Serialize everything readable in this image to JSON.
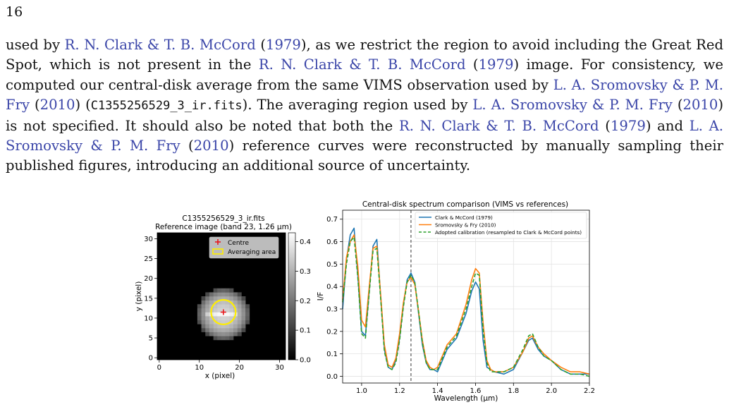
{
  "page_number": "16",
  "paragraph": [
    {
      "t": "used by "
    },
    {
      "t": "R. N. Clark & T. B. McCord",
      "link": true
    },
    {
      "t": " ("
    },
    {
      "t": "1979",
      "link": true
    },
    {
      "t": "), as we restrict the region to avoid including the Great Red Spot, which is not present in the "
    },
    {
      "t": "R. N. Clark & T. B. McCord",
      "link": true
    },
    {
      "t": " ("
    },
    {
      "t": "1979",
      "link": true
    },
    {
      "t": ") image. For consistency, we computed our central-disk average from the same VIMS observation used by "
    },
    {
      "t": "L. A. Sromovsky & P. M. Fry",
      "link": true
    },
    {
      "t": " ("
    },
    {
      "t": "2010",
      "link": true
    },
    {
      "t": ") ("
    },
    {
      "t": "C1355256529_3_ir.fits",
      "code": true
    },
    {
      "t": "). The averaging region used by "
    },
    {
      "t": "L. A. Sromovsky & P. M. Fry",
      "link": true
    },
    {
      "t": " ("
    },
    {
      "t": "2010",
      "link": true
    },
    {
      "t": ") is not specified. It should also be noted that both the "
    },
    {
      "t": "R. N. Clark & T. B. McCord",
      "link": true
    },
    {
      "t": " ("
    },
    {
      "t": "1979",
      "link": true
    },
    {
      "t": ") and "
    },
    {
      "t": "L. A. Sromovsky & P. M. Fry",
      "link": true
    },
    {
      "t": " ("
    },
    {
      "t": "2010",
      "link": true
    },
    {
      "t": ") reference curves were reconstructed by manually sampling their published figures, introducing an additional source of uncertainty."
    }
  ],
  "chart_data": [
    {
      "type": "heatmap",
      "title": "C1355256529_3_ir.fits",
      "subtitle": "Reference image (band 23, 1.26 μm)",
      "xlabel": "x (pixel)",
      "ylabel": "y (pixel)",
      "xlim": [
        -0.5,
        31.5
      ],
      "ylim": [
        -0.5,
        31.5
      ],
      "xticks": [
        0,
        10,
        20,
        30
      ],
      "yticks": [
        0,
        5,
        10,
        15,
        20,
        25,
        30
      ],
      "colorbar": {
        "range": [
          0,
          0.43
        ],
        "ticks": [
          "0.0",
          "0.1",
          "0.2",
          "0.3",
          "0.4"
        ]
      },
      "disk": {
        "center_x": 16,
        "center_y": 11,
        "radius_px": 6.2,
        "peak": 0.36
      },
      "centre": {
        "x": 16,
        "y": 11.5
      },
      "averaging_area": {
        "center_x": 16,
        "center_y": 11.5,
        "radius_px": 1.8
      },
      "legend": [
        "Centre",
        "Averaging area"
      ],
      "legend_position": "top-right",
      "colors": {
        "centre": "#e8161b",
        "averaging_area": "#ffee00"
      }
    },
    {
      "type": "line",
      "title": "Central-disk spectrum comparison (VIMS vs references)",
      "xlabel": "Wavelength (μm)",
      "ylabel": "I/F",
      "xlim": [
        0.9,
        2.2
      ],
      "ylim": [
        -0.03,
        0.74
      ],
      "xticks": [
        "1.0",
        "1.2",
        "1.4",
        "1.6",
        "1.8",
        "2.0",
        "2.2"
      ],
      "yticks": [
        "0.0",
        "0.1",
        "0.2",
        "0.3",
        "0.4",
        "0.5",
        "0.6",
        "0.7"
      ],
      "grid": true,
      "vline": 1.26,
      "legend_position": "top-right",
      "series": [
        {
          "name": "Clark & McCord (1979)",
          "color": "#1f77b4",
          "dash": false,
          "x": [
            0.9,
            0.92,
            0.94,
            0.96,
            0.98,
            1.0,
            1.02,
            1.04,
            1.06,
            1.08,
            1.1,
            1.12,
            1.14,
            1.16,
            1.18,
            1.2,
            1.22,
            1.24,
            1.26,
            1.28,
            1.3,
            1.32,
            1.34,
            1.36,
            1.38,
            1.4,
            1.45,
            1.5,
            1.55,
            1.58,
            1.6,
            1.62,
            1.64,
            1.66,
            1.68,
            1.7,
            1.75,
            1.8,
            1.85,
            1.88,
            1.9,
            1.93,
            1.96,
            2.0,
            2.05,
            2.1,
            2.15,
            2.2
          ],
          "y": [
            0.3,
            0.52,
            0.63,
            0.66,
            0.45,
            0.2,
            0.18,
            0.38,
            0.58,
            0.61,
            0.36,
            0.12,
            0.04,
            0.03,
            0.07,
            0.17,
            0.32,
            0.43,
            0.46,
            0.42,
            0.28,
            0.14,
            0.06,
            0.03,
            0.03,
            0.02,
            0.12,
            0.17,
            0.28,
            0.38,
            0.42,
            0.39,
            0.16,
            0.04,
            0.03,
            0.02,
            0.01,
            0.03,
            0.11,
            0.16,
            0.17,
            0.12,
            0.09,
            0.07,
            0.03,
            0.01,
            0.01,
            0.01
          ]
        },
        {
          "name": "Sromovsky & Fry (2010)",
          "color": "#ff7f0e",
          "dash": false,
          "x": [
            0.9,
            0.92,
            0.94,
            0.96,
            0.98,
            1.0,
            1.02,
            1.04,
            1.06,
            1.08,
            1.1,
            1.12,
            1.14,
            1.16,
            1.18,
            1.2,
            1.22,
            1.24,
            1.26,
            1.28,
            1.3,
            1.32,
            1.34,
            1.36,
            1.38,
            1.4,
            1.45,
            1.5,
            1.55,
            1.58,
            1.6,
            1.62,
            1.64,
            1.66,
            1.68,
            1.7,
            1.75,
            1.8,
            1.85,
            1.88,
            1.9,
            1.93,
            1.96,
            2.0,
            2.05,
            2.1,
            2.15,
            2.2
          ],
          "y": [
            0.34,
            0.53,
            0.6,
            0.63,
            0.49,
            0.25,
            0.22,
            0.4,
            0.57,
            0.58,
            0.37,
            0.14,
            0.05,
            0.04,
            0.08,
            0.19,
            0.33,
            0.42,
            0.44,
            0.41,
            0.29,
            0.16,
            0.07,
            0.04,
            0.03,
            0.04,
            0.14,
            0.19,
            0.32,
            0.43,
            0.48,
            0.46,
            0.24,
            0.07,
            0.03,
            0.02,
            0.02,
            0.04,
            0.11,
            0.17,
            0.18,
            0.13,
            0.1,
            0.07,
            0.04,
            0.02,
            0.02,
            0.01
          ]
        },
        {
          "name": "Adopted calibration (resampled to Clark & McCord points)",
          "color": "#2ca02c",
          "dash": true,
          "x": [
            0.9,
            0.92,
            0.94,
            0.96,
            0.98,
            1.0,
            1.02,
            1.04,
            1.06,
            1.08,
            1.1,
            1.12,
            1.14,
            1.16,
            1.18,
            1.2,
            1.22,
            1.24,
            1.26,
            1.28,
            1.3,
            1.32,
            1.34,
            1.36,
            1.38,
            1.4,
            1.45,
            1.5,
            1.55,
            1.58,
            1.6,
            1.62,
            1.64,
            1.66,
            1.68,
            1.7,
            1.75,
            1.8,
            1.85,
            1.88,
            1.9,
            1.93,
            1.96,
            2.0,
            2.05,
            2.1,
            2.15,
            2.2
          ],
          "y": [
            0.33,
            0.5,
            0.6,
            0.62,
            0.44,
            0.19,
            0.17,
            0.37,
            0.56,
            0.57,
            0.35,
            0.11,
            0.04,
            0.03,
            0.06,
            0.16,
            0.31,
            0.42,
            0.45,
            0.42,
            0.29,
            0.15,
            0.06,
            0.03,
            0.03,
            0.03,
            0.13,
            0.18,
            0.3,
            0.4,
            0.46,
            0.45,
            0.21,
            0.06,
            0.02,
            0.02,
            0.02,
            0.04,
            0.12,
            0.18,
            0.19,
            0.13,
            0.09,
            0.07,
            0.03,
            0.01,
            0.01,
            0.0
          ]
        }
      ]
    }
  ]
}
